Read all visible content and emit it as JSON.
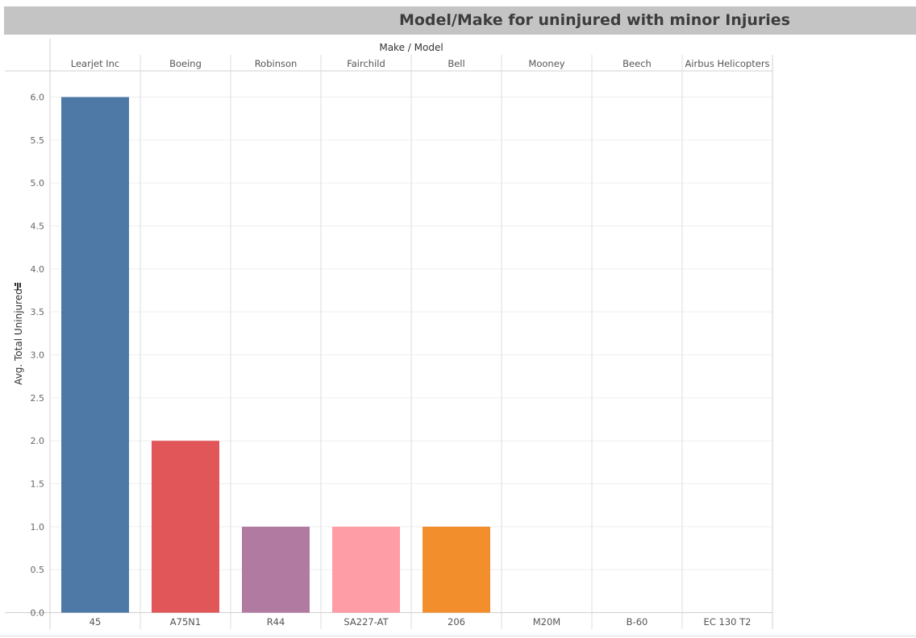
{
  "title": "Model/Make for uninjured with minor Injuries",
  "header_label": "Make / Model",
  "sort_icon": "sort-descending-icon",
  "chart_data": {
    "type": "bar",
    "title": "Model/Make for uninjured with minor Injuries",
    "xlabel": "Make / Model",
    "ylabel": "Avg. Total Uninjured",
    "ylim": [
      0,
      6.0
    ],
    "y_ticks": [
      "0.0",
      "0.5",
      "1.0",
      "1.5",
      "2.0",
      "2.5",
      "3.0",
      "3.5",
      "4.0",
      "4.5",
      "5.0",
      "5.5",
      "6.0"
    ],
    "makes": [
      "Learjet Inc",
      "Boeing",
      "Robinson",
      "Fairchild",
      "Bell",
      "Mooney",
      "Beech",
      "Airbus Helicopters"
    ],
    "categories": [
      "45",
      "A75N1",
      "R44",
      "SA227-AT",
      "206",
      "M20M",
      "B-60",
      "EC 130 T2"
    ],
    "values": [
      6,
      2,
      1,
      1,
      1,
      0,
      0,
      0
    ],
    "colors": [
      "#4e79a7",
      "#e15759",
      "#b07aa1",
      "#ff9da7",
      "#f28e2b",
      "#9c755f",
      "#bab0ac",
      "#76b7b2"
    ],
    "grid": true,
    "legend": "none"
  }
}
